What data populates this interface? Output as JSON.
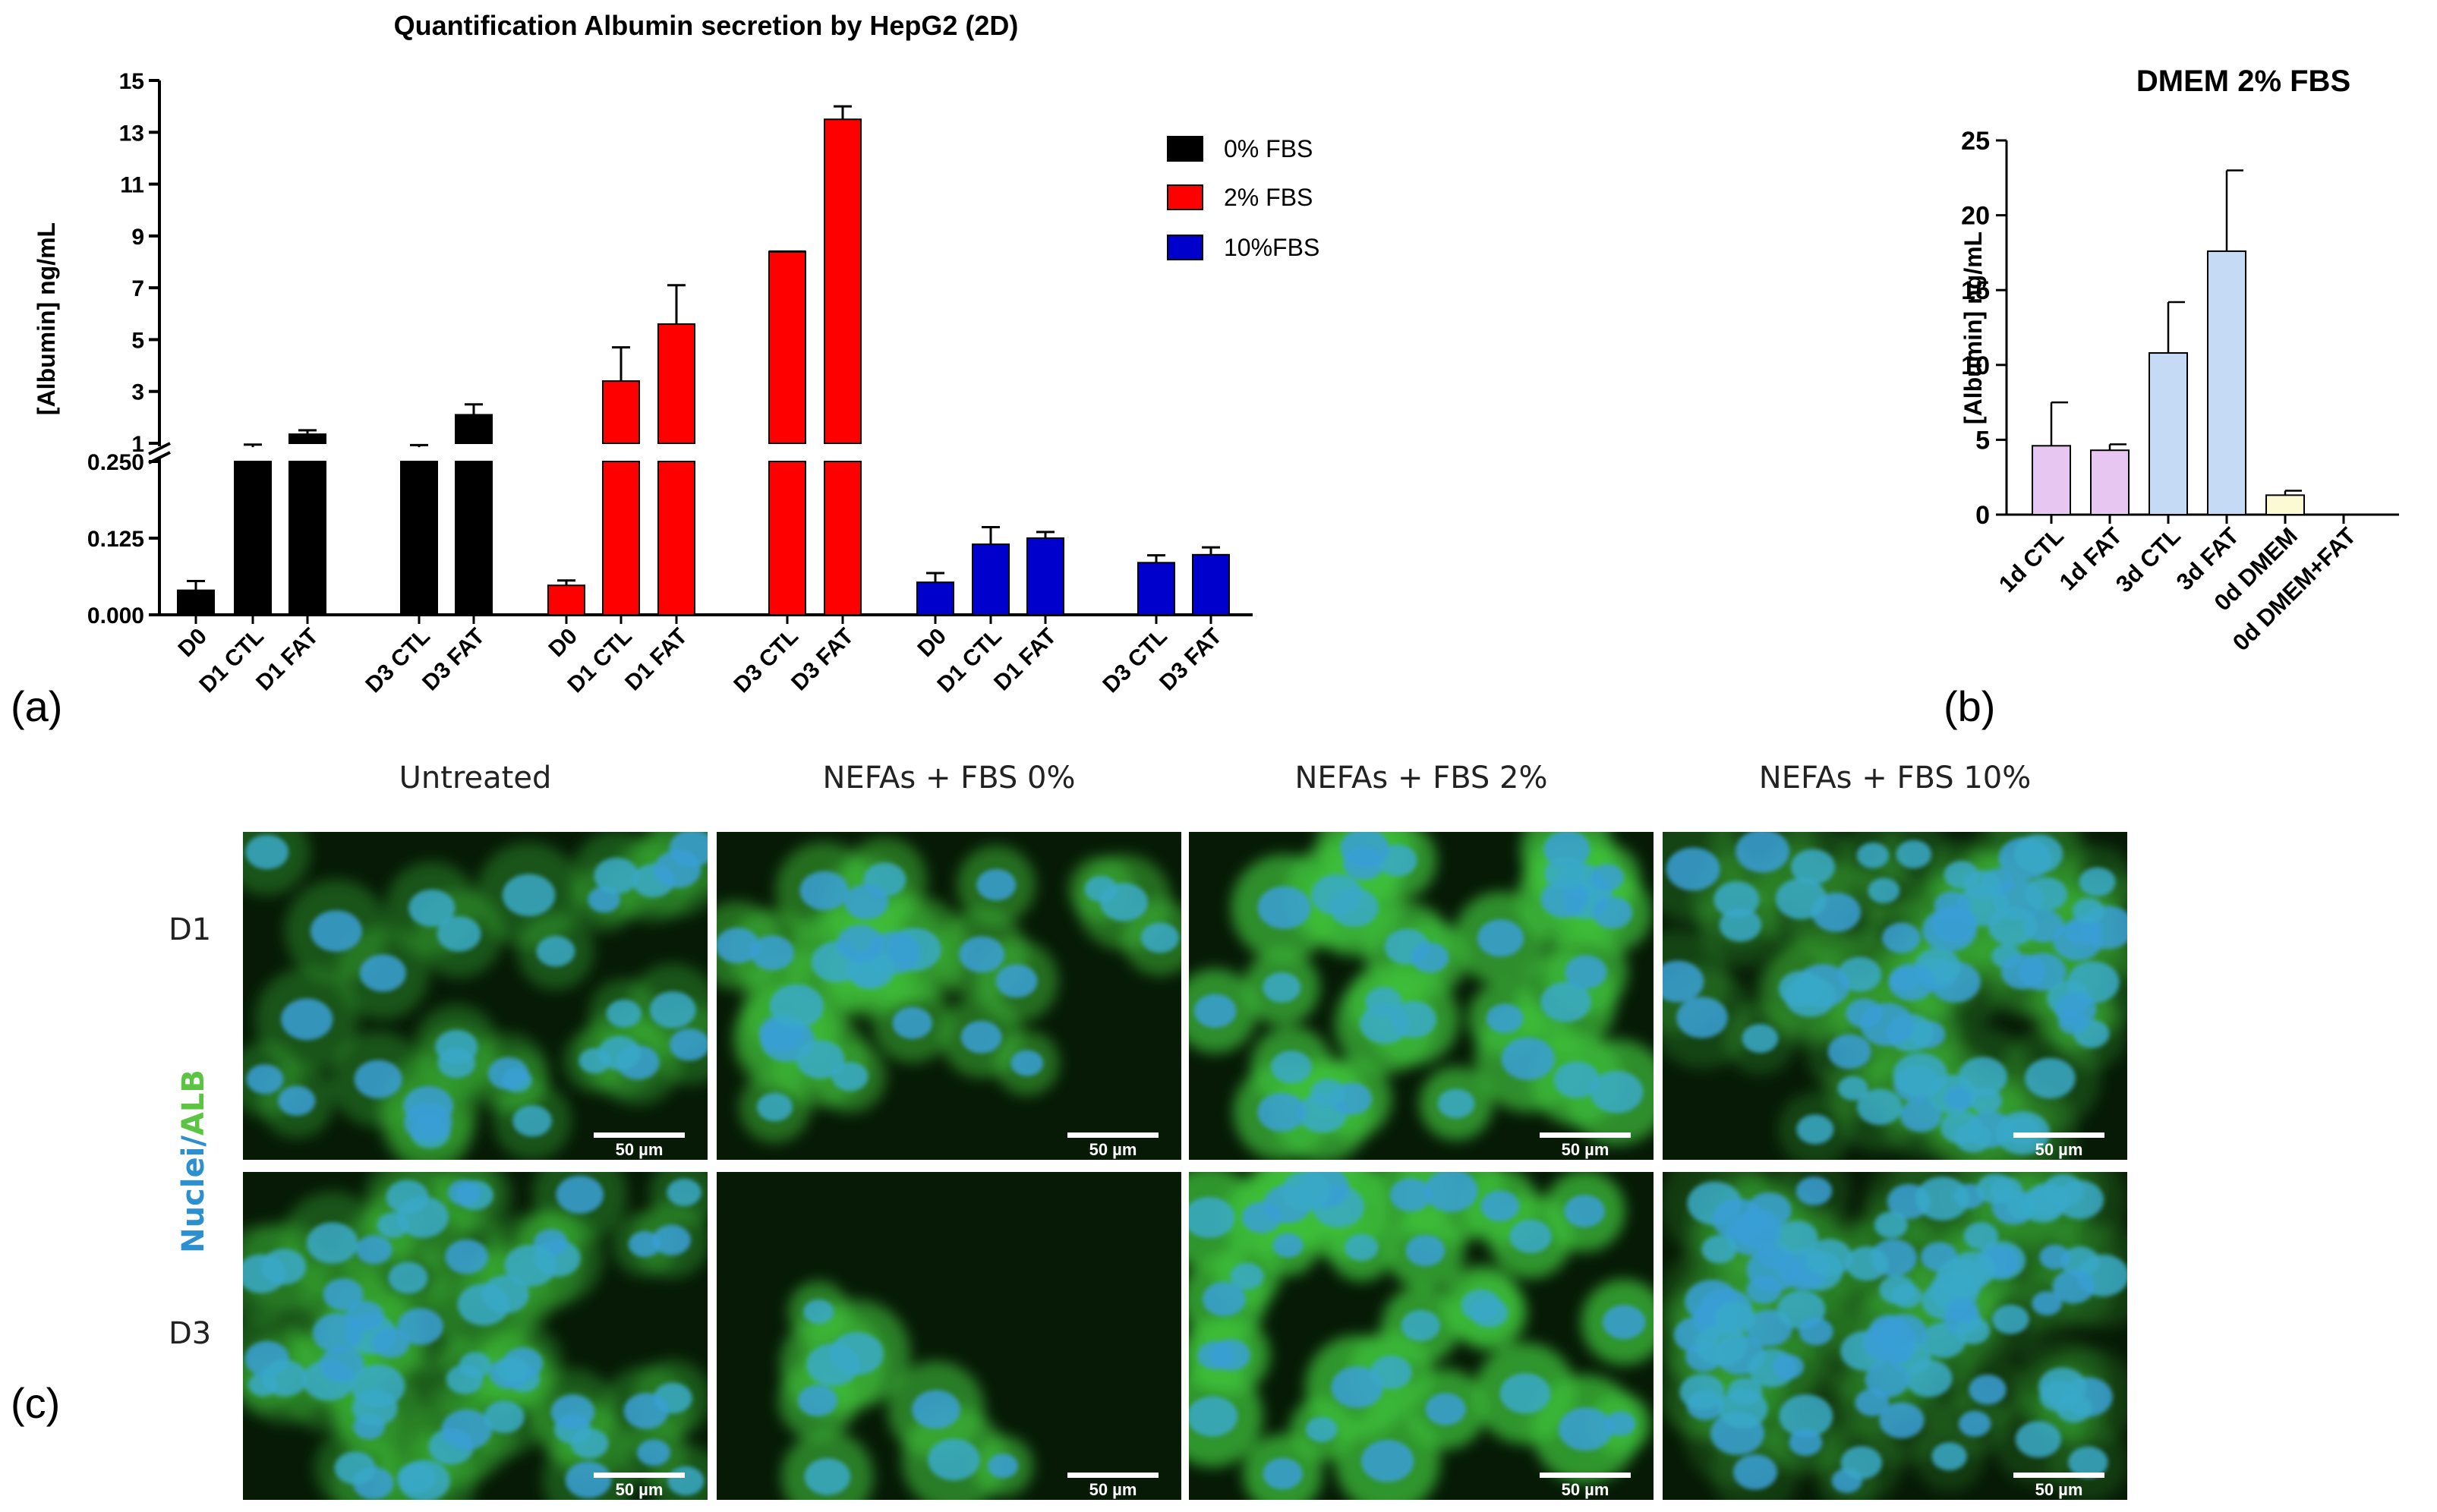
{
  "chart_data": [
    {
      "panel": "(a)",
      "type": "bar",
      "title": "Quantification Albumin secretion by HepG2 (2D)",
      "ylabel": "[Albumin] ng/mL",
      "y_axis": {
        "segments": [
          {
            "range": [
              0,
              0.25
            ],
            "ticks": [
              "0.000",
              "0.125",
              "0.250"
            ]
          },
          {
            "range": [
              1,
              15
            ],
            "ticks": [
              "1",
              "3",
              "5",
              "7",
              "9",
              "11",
              "13",
              "15"
            ]
          }
        ]
      },
      "legend": {
        "placement": "top-right",
        "items": [
          "0% FBS",
          "2% FBS",
          "10%FBS"
        ]
      },
      "series": [
        {
          "name": "0% FBS",
          "color": "#000000",
          "categories": [
            "D0",
            "D1 CTL",
            "D1 FAT",
            "D3 CTL",
            "D3 FAT"
          ],
          "values": [
            0.04,
            0.85,
            1.35,
            0.85,
            2.1
          ],
          "errors": [
            0.015,
            0.1,
            0.15,
            0.08,
            0.4
          ]
        },
        {
          "name": "2% FBS",
          "color": "#ff0000",
          "categories": [
            "D0",
            "D1 CTL",
            "D1 FAT",
            "D3 CTL",
            "D3 FAT"
          ],
          "values": [
            0.048,
            3.4,
            5.6,
            8.4,
            13.5
          ],
          "errors": [
            0.008,
            1.3,
            1.5,
            0.0,
            0.5
          ]
        },
        {
          "name": "10%FBS",
          "color": "#0000cc",
          "categories": [
            "D0",
            "D1 CTL",
            "D1 FAT",
            "D3 CTL",
            "D3 FAT"
          ],
          "values": [
            0.053,
            0.115,
            0.125,
            0.085,
            0.098
          ],
          "errors": [
            0.015,
            0.028,
            0.01,
            0.012,
            0.012
          ]
        }
      ]
    },
    {
      "panel": "(b)",
      "type": "bar",
      "title": "DMEM 2% FBS",
      "ylabel": "[Albumin] ng/mL",
      "ylim": [
        0,
        25
      ],
      "yticks": [
        "0",
        "5",
        "10",
        "15",
        "20",
        "25"
      ],
      "categories": [
        "1d CTL",
        "1d FAT",
        "3d CTL",
        "3d FAT",
        "0d DMEM",
        "0d DMEM+FAT"
      ],
      "values": [
        4.6,
        4.3,
        10.8,
        17.6,
        1.3,
        0.0
      ],
      "errors": [
        2.9,
        0.4,
        3.4,
        5.4,
        0.3,
        0.0
      ],
      "colors": [
        "#e8c6f2",
        "#e8c6f2",
        "#c5daf5",
        "#c5daf5",
        "#fbfad2",
        "#fbfad2"
      ]
    }
  ],
  "panel_labels": {
    "a": "(a)",
    "b": "(b)",
    "c": "(c)"
  },
  "micrographs": {
    "columns": [
      "Untreated",
      "NEFAs + FBS 0%",
      "NEFAs + FBS 2%",
      "NEFAs + FBS 10%"
    ],
    "rows": [
      "D1",
      "D3"
    ],
    "side_label_nuclei": "Nuclei",
    "side_label_sep": "/",
    "side_label_alb": "ALB",
    "scale_bar": "50 µm",
    "colors": {
      "nuclei": "#2c8fd0",
      "alb": "#5cc443"
    }
  }
}
